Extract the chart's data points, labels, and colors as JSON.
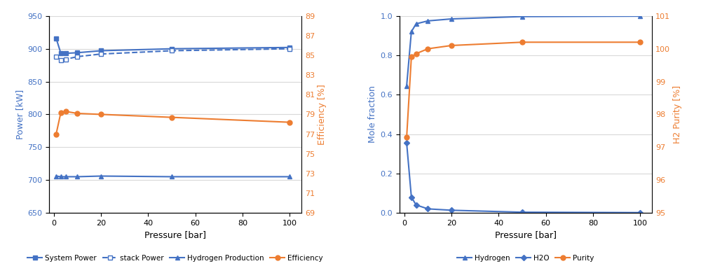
{
  "left": {
    "pressure": [
      1,
      3,
      5,
      10,
      20,
      50,
      100
    ],
    "system_power": [
      916,
      893,
      893,
      894,
      897,
      900,
      902
    ],
    "stack_power": [
      888,
      883,
      884,
      888,
      892,
      897,
      900
    ],
    "hydrogen_production": [
      706,
      705,
      705,
      705,
      706,
      705,
      705
    ],
    "efficiency": [
      77.0,
      79.2,
      79.3,
      79.1,
      79.0,
      78.7,
      78.2
    ],
    "xlabel": "Pressure [bar]",
    "ylabel_left": "Power [kW]",
    "ylabel_right": "Efficiency [%]",
    "ylim_left": [
      650,
      950
    ],
    "ylim_right": [
      69,
      89
    ],
    "yticks_left": [
      650,
      700,
      750,
      800,
      850,
      900,
      950
    ],
    "yticks_right": [
      69,
      71,
      73,
      75,
      77,
      79,
      81,
      83,
      85,
      87,
      89
    ],
    "xticks": [
      0,
      20,
      40,
      60,
      80,
      100
    ],
    "legend_labels": [
      "System Power",
      "stack Power",
      "Hydrogen Production",
      "Efficiency"
    ],
    "color_blue": "#4472C4",
    "color_orange": "#ED7D31"
  },
  "right": {
    "pressure": [
      1,
      3,
      5,
      10,
      20,
      50,
      100
    ],
    "hydrogen": [
      0.645,
      0.92,
      0.96,
      0.975,
      0.985,
      0.997,
      0.999
    ],
    "h2o": [
      0.355,
      0.08,
      0.04,
      0.02,
      0.013,
      0.003,
      0.001
    ],
    "purity": [
      97.3,
      99.75,
      99.85,
      100.0,
      100.1,
      100.2,
      100.2
    ],
    "xlabel": "Pressure [bar]",
    "ylabel_left": "Mole fraction",
    "ylabel_right": "H2 Purity [%]",
    "ylim_left": [
      0,
      1.0
    ],
    "ylim_right": [
      95,
      101
    ],
    "yticks_left": [
      0,
      0.2,
      0.4,
      0.6,
      0.8,
      1.0
    ],
    "yticks_right": [
      95,
      96,
      97,
      98,
      99,
      100,
      101
    ],
    "xticks": [
      0,
      20,
      40,
      60,
      80,
      100
    ],
    "legend_labels": [
      "Hydrogen",
      "H2O",
      "Purity"
    ],
    "color_blue": "#4472C4",
    "color_orange": "#ED7D31"
  }
}
